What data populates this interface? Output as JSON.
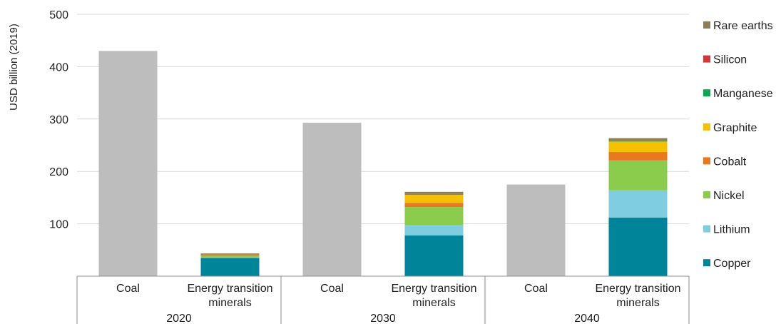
{
  "chart_data": {
    "type": "bar",
    "stacked": true,
    "ylabel": "USD billion (2019)",
    "ylim": [
      0,
      500
    ],
    "yticks": [
      100,
      200,
      300,
      400,
      500
    ],
    "grid": true,
    "legend_position": "right",
    "group_labels": [
      "2020",
      "2030",
      "2040"
    ],
    "bars": [
      {
        "group": "2020",
        "category": "Coal",
        "kind": "single",
        "value": 430
      },
      {
        "group": "2020",
        "category": "Energy transition minerals",
        "kind": "stack",
        "values": {
          "Copper": 35,
          "Lithium": 1,
          "Nickel": 3,
          "Cobalt": 2,
          "Graphite": 1,
          "Manganese": 0.3,
          "Silicon": 0.2,
          "Rare earths": 1
        }
      },
      {
        "group": "2030",
        "category": "Coal",
        "kind": "single",
        "value": 293
      },
      {
        "group": "2030",
        "category": "Energy transition minerals",
        "kind": "stack",
        "values": {
          "Copper": 78,
          "Lithium": 20,
          "Nickel": 34,
          "Cobalt": 8,
          "Graphite": 16,
          "Manganese": 0.5,
          "Silicon": 0.5,
          "Rare earths": 4
        }
      },
      {
        "group": "2040",
        "category": "Coal",
        "kind": "single",
        "value": 175
      },
      {
        "group": "2040",
        "category": "Energy transition minerals",
        "kind": "stack",
        "values": {
          "Copper": 112,
          "Lithium": 52,
          "Nickel": 57,
          "Cobalt": 16,
          "Graphite": 20,
          "Manganese": 0.8,
          "Silicon": 0.7,
          "Rare earths": 5
        }
      }
    ],
    "category_labels": {
      "Coal": [
        "Coal"
      ],
      "Energy transition minerals": [
        "Energy transition",
        "minerals"
      ]
    },
    "series": [
      {
        "name": "Copper",
        "color": "#00849a"
      },
      {
        "name": "Lithium",
        "color": "#7fcde0"
      },
      {
        "name": "Nickel",
        "color": "#8ccc4c"
      },
      {
        "name": "Cobalt",
        "color": "#e8791f"
      },
      {
        "name": "Graphite",
        "color": "#f5c000"
      },
      {
        "name": "Manganese",
        "color": "#0aa84f"
      },
      {
        "name": "Silicon",
        "color": "#d0393b"
      },
      {
        "name": "Rare earths",
        "color": "#8c7e55"
      }
    ],
    "legend_order": [
      "Rare earths",
      "Silicon",
      "Manganese",
      "Graphite",
      "Cobalt",
      "Nickel",
      "Lithium",
      "Copper"
    ],
    "colors": {
      "coal": "#bdbdbd",
      "grid": "#d9d9d9",
      "axis": "#8c8c8c"
    }
  }
}
